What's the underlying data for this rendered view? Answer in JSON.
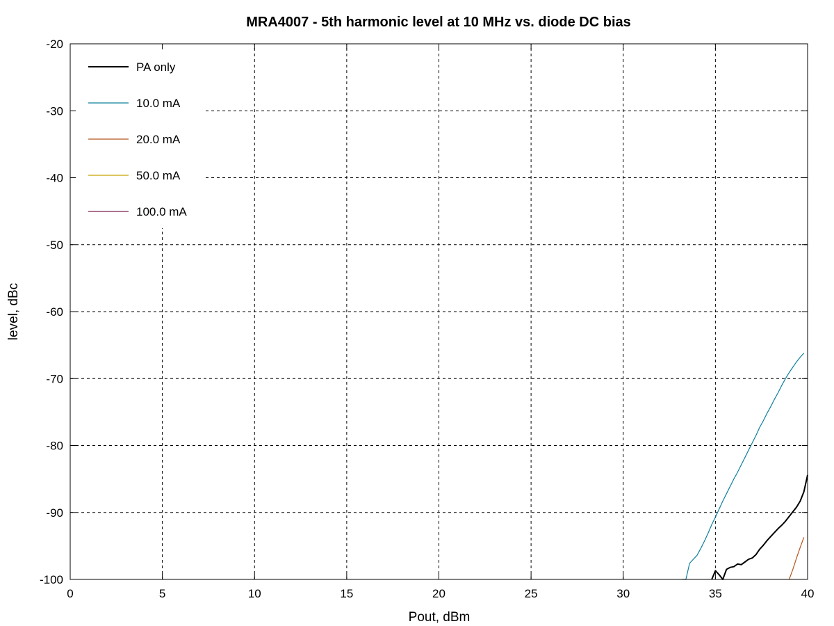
{
  "chart_data": {
    "type": "line",
    "title": "MRA4007 - 5th harmonic level at 10 MHz vs. diode DC bias",
    "xlabel": "Pout, dBm",
    "ylabel": "level, dBc",
    "xlim": [
      0,
      40
    ],
    "ylim": [
      -100,
      -20
    ],
    "xticks": [
      0,
      5,
      10,
      15,
      20,
      25,
      30,
      35,
      40
    ],
    "yticks": [
      -100,
      -90,
      -80,
      -70,
      -60,
      -50,
      -40,
      -30,
      -20
    ],
    "grid": true,
    "legend_position": "top-left",
    "series": [
      {
        "name": "PA only",
        "color": "#000000",
        "x": [
          34.8,
          35.0,
          35.2,
          35.4,
          35.6,
          35.8,
          36.0,
          36.2,
          36.4,
          36.6,
          36.8,
          37.0,
          37.2,
          37.4,
          37.6,
          37.8,
          38.0,
          38.2,
          38.4,
          38.6,
          38.8,
          39.0,
          39.2,
          39.4,
          39.6,
          39.8,
          40.0
        ],
        "y": [
          -100.0,
          -98.7,
          -99.3,
          -100.0,
          -98.5,
          -98.2,
          -98.1,
          -97.7,
          -97.8,
          -97.4,
          -97.0,
          -96.8,
          -96.3,
          -95.5,
          -94.9,
          -94.2,
          -93.6,
          -93.0,
          -92.4,
          -91.9,
          -91.3,
          -90.6,
          -89.9,
          -89.2,
          -88.3,
          -86.9,
          -84.4
        ]
      },
      {
        "name": "10.0 mA",
        "color": "#0e7f9c",
        "x": [
          33.2,
          33.4,
          33.6,
          33.8,
          34.0,
          34.2,
          34.4,
          34.6,
          34.8,
          35.0,
          35.2,
          35.4,
          35.6,
          35.8,
          36.0,
          36.2,
          36.4,
          36.6,
          36.8,
          37.0,
          37.2,
          37.4,
          37.6,
          37.8,
          38.0,
          38.2,
          38.4,
          38.6,
          38.8,
          39.0,
          39.2,
          39.4,
          39.6,
          39.8
        ],
        "y": [
          -100.0,
          -100.0,
          -97.6,
          -97.0,
          -96.4,
          -95.4,
          -94.3,
          -93.1,
          -91.8,
          -90.7,
          -89.5,
          -88.3,
          -87.2,
          -86.1,
          -85.0,
          -84.0,
          -82.9,
          -81.8,
          -80.7,
          -79.6,
          -78.5,
          -77.3,
          -76.3,
          -75.2,
          -74.2,
          -73.1,
          -72.1,
          -71.0,
          -70.0,
          -69.1,
          -68.3,
          -67.5,
          -66.8,
          -66.2
        ]
      },
      {
        "name": "20.0 mA",
        "color": "#b5541a",
        "x": [
          39.0,
          39.2,
          39.4,
          39.6,
          39.8
        ],
        "y": [
          -100.0,
          -98.5,
          -96.8,
          -95.2,
          -93.7
        ]
      },
      {
        "name": "50.0 mA",
        "color": "#c8a200",
        "x": [],
        "y": []
      },
      {
        "name": "100.0 mA",
        "color": "#7b1f4f",
        "x": [],
        "y": []
      }
    ]
  }
}
